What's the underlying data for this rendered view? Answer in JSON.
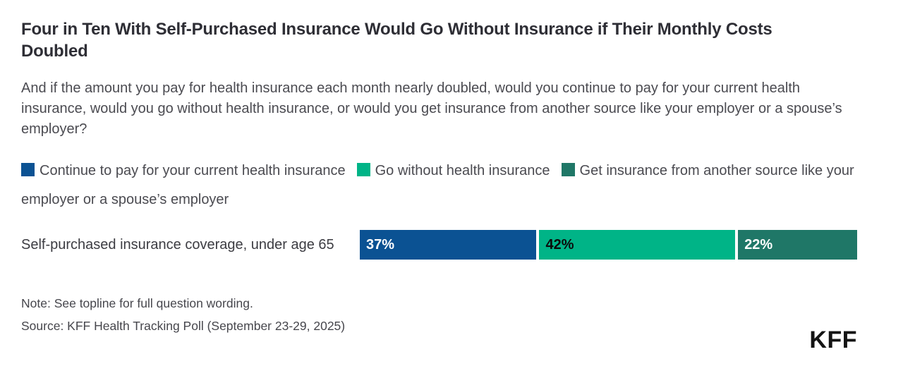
{
  "title": "Four in Ten With Self-Purchased Insurance Would Go Without Insurance if Their Monthly Costs Doubled",
  "subtitle": "And if the amount you pay for health insurance each month nearly doubled, would you continue to pay for your current health insurance, would you go without health insurance, or would you get insurance from another source like your employer or a spouse’s employer?",
  "legend": {
    "items": [
      {
        "label": "Continue to pay for your current health insurance",
        "color": "#0B5293"
      },
      {
        "label": "Go without health insurance",
        "color": "#00B487"
      },
      {
        "label": "Get insurance from another source like your employer or a spouse’s employer",
        "color": "#1F7767"
      }
    ]
  },
  "chart_data": {
    "type": "bar",
    "orientation": "horizontal-stacked",
    "categories": [
      "Self-purchased insurance coverage, under age 65"
    ],
    "series": [
      {
        "name": "Continue to pay for your current health insurance",
        "values": [
          37
        ],
        "display": "37%",
        "color": "#0B5293",
        "label_color": "#FFFFFF"
      },
      {
        "name": "Go without health insurance",
        "values": [
          42
        ],
        "display": "42%",
        "color": "#00B487",
        "label_color": "#0B0B0B"
      },
      {
        "name": "Get insurance from another source like your employer or a spouse’s employer",
        "values": [
          22
        ],
        "display": "22%",
        "color": "#1F7767",
        "label_color": "#FFFFFF"
      }
    ],
    "xlim": [
      0,
      101
    ],
    "grid": false,
    "legend_position": "top",
    "value_labels": "inside-left"
  },
  "row_label": "Self-purchased insurance coverage, under age 65",
  "footer": {
    "note": "Note: See topline for full question wording.",
    "source": "Source: KFF Health Tracking Poll (September 23-29, 2025)",
    "logo": "KFF"
  }
}
